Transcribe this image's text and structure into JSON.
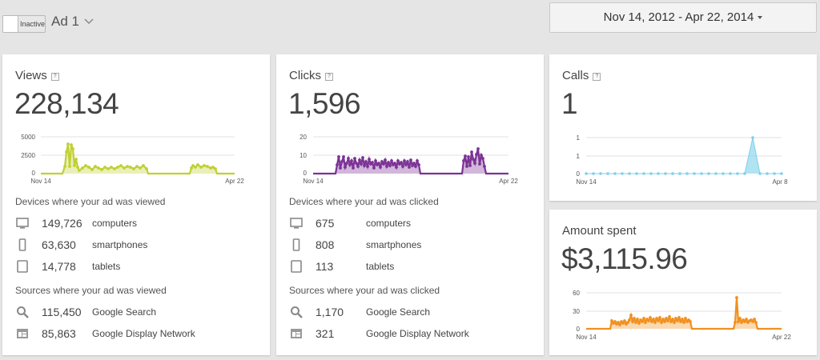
{
  "header": {
    "toggle_label": "Inactive",
    "ad_name": "Ad 1",
    "date_range": "Nov 14, 2012 - Apr 22, 2014"
  },
  "help_glyph": "?",
  "views": {
    "title": "Views",
    "total": "228,134",
    "chart": {
      "y_ticks": [
        "5000",
        "2500",
        "0"
      ],
      "x_start": "Nov 14",
      "x_end": "Apr 22",
      "color": "#c0d033"
    },
    "devices_heading": "Devices where your ad was viewed",
    "devices": [
      {
        "icon": "computer-icon",
        "value": "149,726",
        "label": "computers"
      },
      {
        "icon": "smartphone-icon",
        "value": "63,630",
        "label": "smartphones"
      },
      {
        "icon": "tablet-icon",
        "value": "14,778",
        "label": "tablets"
      }
    ],
    "sources_heading": "Sources where your ad was viewed",
    "sources": [
      {
        "icon": "search-icon",
        "value": "115,450",
        "label": "Google Search"
      },
      {
        "icon": "display-network-icon",
        "value": "85,863",
        "label": "Google Display Network"
      }
    ]
  },
  "clicks": {
    "title": "Clicks",
    "total": "1,596",
    "chart": {
      "y_ticks": [
        "20",
        "10",
        "0"
      ],
      "x_start": "Nov 14",
      "x_end": "Apr 22",
      "color": "#7b3294"
    },
    "devices_heading": "Devices where your ad was clicked",
    "devices": [
      {
        "icon": "computer-icon",
        "value": "675",
        "label": "computers"
      },
      {
        "icon": "smartphone-icon",
        "value": "808",
        "label": "smartphones"
      },
      {
        "icon": "tablet-icon",
        "value": "113",
        "label": "tablets"
      }
    ],
    "sources_heading": "Sources where your ad was clicked",
    "sources": [
      {
        "icon": "search-icon",
        "value": "1,170",
        "label": "Google Search"
      },
      {
        "icon": "display-network-icon",
        "value": "321",
        "label": "Google Display Network"
      }
    ]
  },
  "calls": {
    "title": "Calls",
    "total": "1",
    "chart": {
      "y_ticks": [
        "1",
        "1",
        "0"
      ],
      "x_start": "Nov 14",
      "x_end": "Apr 8",
      "color": "#7fd0ea"
    }
  },
  "spent": {
    "title": "Amount spent",
    "total": "$3,115.96",
    "chart": {
      "y_ticks": [
        "60",
        "30",
        "0"
      ],
      "x_start": "Nov 14",
      "x_end": "Apr 22",
      "color": "#f0901e"
    }
  }
}
